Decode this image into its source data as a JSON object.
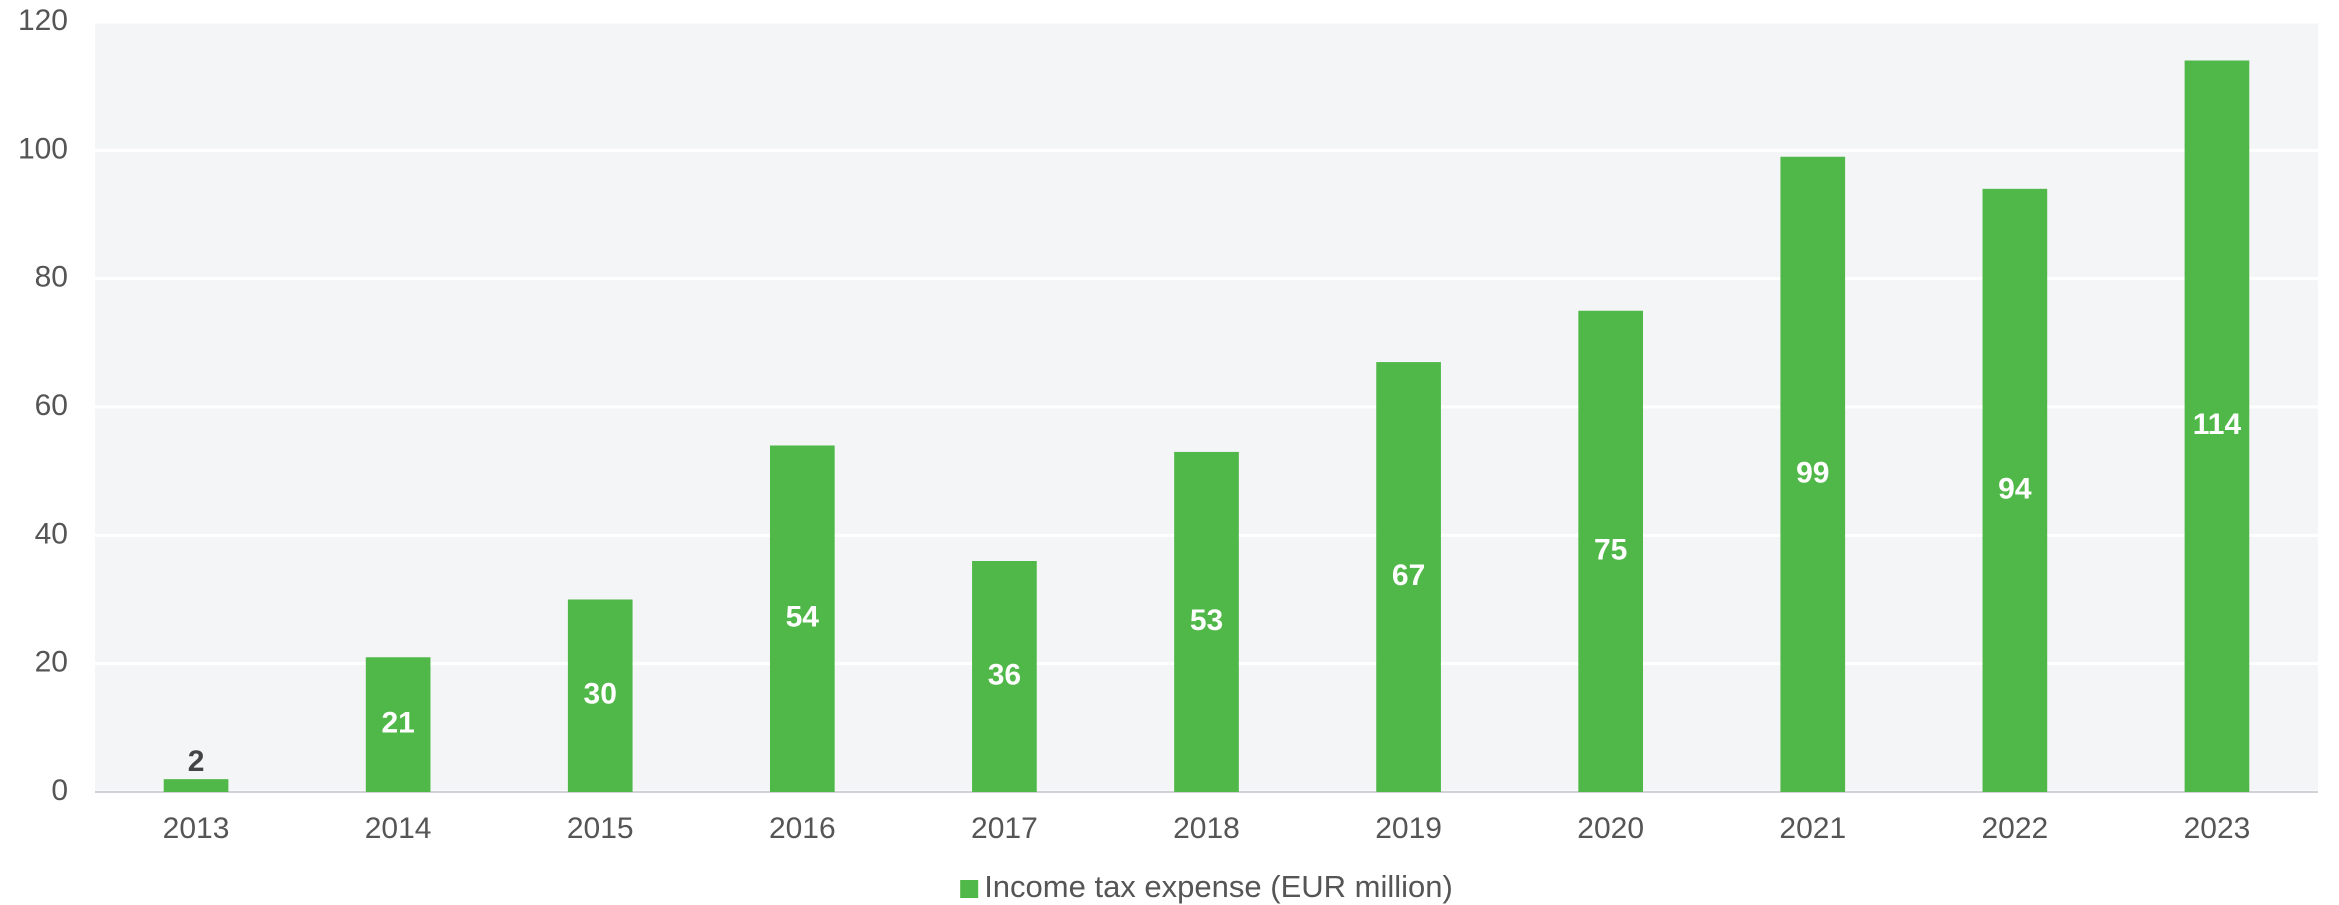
{
  "chart_data": {
    "type": "bar",
    "categories": [
      "2013",
      "2014",
      "2015",
      "2016",
      "2017",
      "2018",
      "2019",
      "2020",
      "2021",
      "2022",
      "2023"
    ],
    "series": [
      {
        "name": "Income tax expense (EUR million)",
        "color": "#50b848",
        "values": [
          2,
          21,
          30,
          54,
          36,
          53,
          67,
          75,
          99,
          94,
          114
        ]
      }
    ],
    "ylim": [
      0,
      120
    ],
    "yticks": [
      0,
      20,
      40,
      60,
      80,
      100,
      120
    ],
    "grid": true,
    "legend": "bottom"
  }
}
